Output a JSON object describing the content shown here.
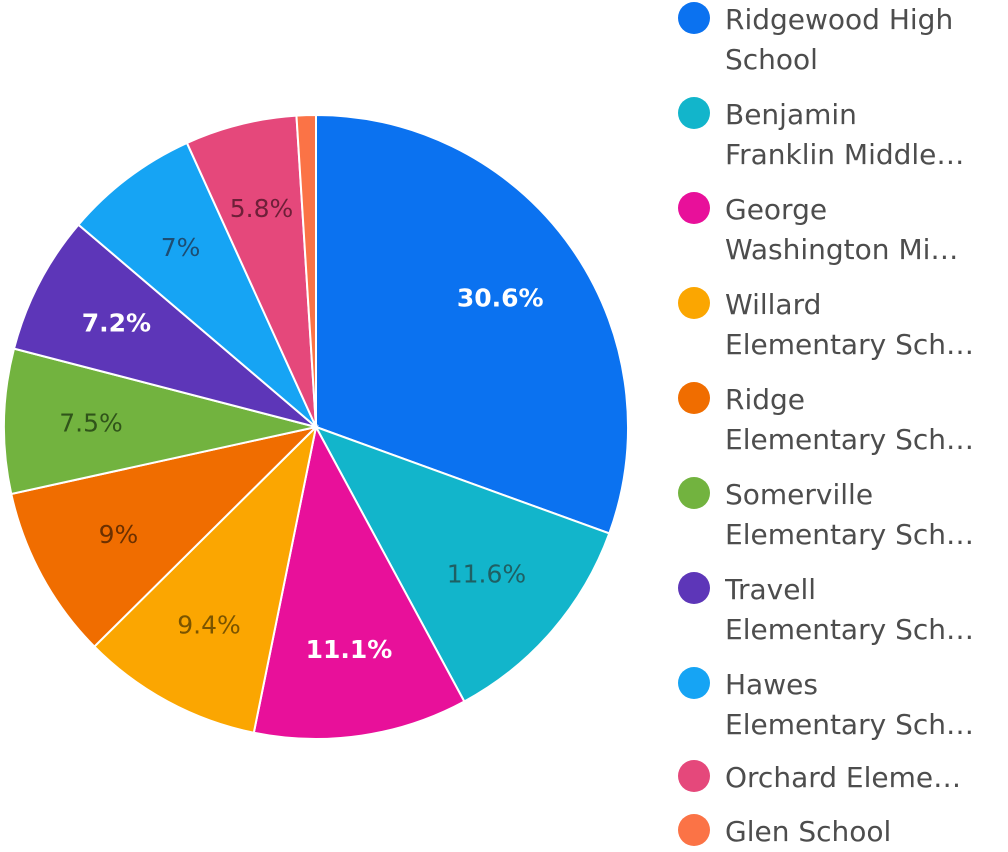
{
  "chart_data": {
    "type": "pie",
    "title": "",
    "legend_position": "right",
    "slices": [
      {
        "name": "Ridgewood High School",
        "legend_text": "Ridgewood High\nSchool",
        "value": 30.6,
        "label": "30.6%",
        "color": "#0b72f0",
        "label_color": "#ffffff",
        "label_bold": true
      },
      {
        "name": "Benjamin Franklin Middle…",
        "legend_text": "Benjamin\nFranklin Middle…",
        "value": 11.6,
        "label": "11.6%",
        "color": "#12b5cb",
        "label_color": "#1f5f63",
        "label_bold": false
      },
      {
        "name": "George Washington Mi…",
        "legend_text": "George\nWashington Mi…",
        "value": 11.1,
        "label": "11.1%",
        "color": "#e8109a",
        "label_color": "#ffffff",
        "label_bold": true
      },
      {
        "name": "Willard Elementary Sch…",
        "legend_text": "Willard\nElementary Sch…",
        "value": 9.4,
        "label": "9.4%",
        "color": "#fba601",
        "label_color": "#7a5400",
        "label_bold": false
      },
      {
        "name": "Ridge Elementary Sch…",
        "legend_text": "Ridge\nElementary Sch…",
        "value": 9.0,
        "label": "9%",
        "color": "#f06d00",
        "label_color": "#6b3000",
        "label_bold": false
      },
      {
        "name": "Somerville Elementary Sch…",
        "legend_text": "Somerville\nElementary Sch…",
        "value": 7.5,
        "label": "7.5%",
        "color": "#72b33f",
        "label_color": "#30541a",
        "label_bold": false
      },
      {
        "name": "Travell Elementary Sch…",
        "legend_text": "Travell\nElementary Sch…",
        "value": 7.2,
        "label": "7.2%",
        "color": "#5d36b8",
        "label_color": "#ffffff",
        "label_bold": true
      },
      {
        "name": "Hawes Elementary Sch…",
        "legend_text": "Hawes\nElementary Sch…",
        "value": 7.0,
        "label": "7%",
        "color": "#16a4f4",
        "label_color": "#1d4d73",
        "label_bold": false
      },
      {
        "name": "Orchard Eleme…",
        "legend_text": "Orchard Eleme…",
        "value": 5.8,
        "label": "5.8%",
        "color": "#e5487b",
        "label_color": "#6e1f38",
        "label_bold": false
      },
      {
        "name": "Glen School",
        "legend_text": "Glen School",
        "value": 1.0,
        "label": "",
        "color": "#fb7346",
        "label_color": "#ffffff",
        "label_bold": false
      }
    ]
  }
}
